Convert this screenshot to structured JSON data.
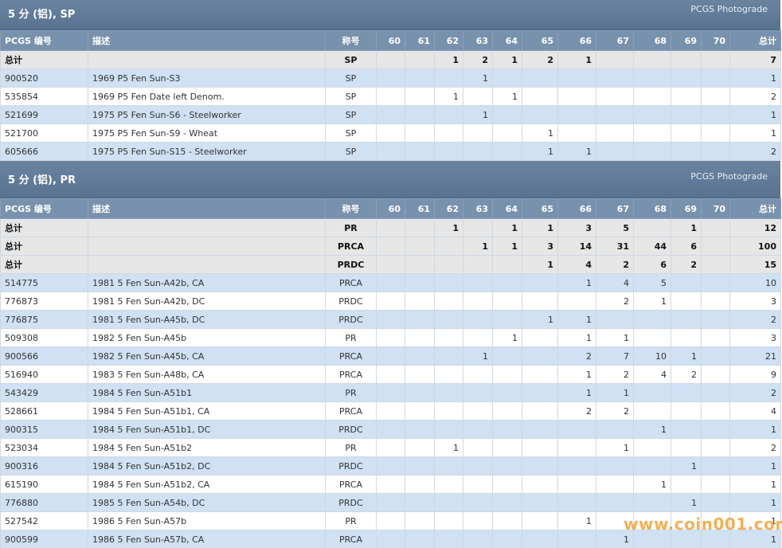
{
  "sections": [
    {
      "title": "5 分 (铝), SP",
      "subtitle": "PCGS Photograde",
      "columns": [
        "PCGS 编号",
        "描述",
        "称号",
        "60",
        "61",
        "62",
        "63",
        "64",
        "65",
        "66",
        "67",
        "68",
        "69",
        "70",
        "总计"
      ],
      "total_rows": [
        [
          "总计",
          null,
          "SP",
          null,
          null,
          1,
          2,
          1,
          2,
          1,
          null,
          null,
          null,
          null,
          7
        ]
      ],
      "rows": [
        [
          "900520",
          "1969 P5 Fen Sun-S3",
          "SP",
          null,
          null,
          null,
          1,
          null,
          null,
          null,
          null,
          null,
          null,
          null,
          1
        ],
        [
          "535854",
          "1969 P5 Fen Date left Denom.",
          "SP",
          null,
          null,
          1,
          null,
          1,
          null,
          null,
          null,
          null,
          null,
          null,
          2
        ],
        [
          "521699",
          "1975 P5 Fen Sun-S6 - Steelworker",
          "SP",
          null,
          null,
          null,
          1,
          null,
          null,
          null,
          null,
          null,
          null,
          null,
          1
        ],
        [
          "521700",
          "1975 P5 Fen Sun-S9 - Wheat",
          "SP",
          null,
          null,
          null,
          null,
          null,
          1,
          null,
          null,
          null,
          null,
          null,
          1
        ],
        [
          "605666",
          "1975 P5 Fen Sun-S15 - Steelworker",
          "SP",
          null,
          null,
          null,
          null,
          null,
          1,
          1,
          null,
          null,
          null,
          null,
          2
        ]
      ]
    },
    {
      "title": "5 分 (铝), PR",
      "subtitle": "PCGS Photograde",
      "columns": [
        "PCGS 编号",
        "描述",
        "称号",
        "60",
        "61",
        "62",
        "63",
        "64",
        "65",
        "66",
        "67",
        "68",
        "69",
        "70",
        "总计"
      ],
      "total_rows": [
        [
          "总计",
          null,
          "PR",
          null,
          null,
          1,
          null,
          1,
          1,
          3,
          5,
          null,
          1,
          null,
          12
        ],
        [
          "总计",
          null,
          "PRCA",
          null,
          null,
          null,
          1,
          1,
          3,
          14,
          31,
          44,
          6,
          null,
          100
        ],
        [
          "总计",
          null,
          "PRDC",
          null,
          null,
          null,
          null,
          null,
          1,
          4,
          2,
          6,
          2,
          null,
          15
        ]
      ],
      "rows": [
        [
          "514775",
          "1981 5 Fen Sun-A42b, CA",
          "PRCA",
          null,
          null,
          null,
          null,
          null,
          null,
          1,
          4,
          5,
          null,
          null,
          10
        ],
        [
          "776873",
          "1981 5 Fen Sun-A42b, DC",
          "PRDC",
          null,
          null,
          null,
          null,
          null,
          null,
          null,
          2,
          1,
          null,
          null,
          3
        ],
        [
          "776875",
          "1981 5 Fen Sun-A45b, DC",
          "PRDC",
          null,
          null,
          null,
          null,
          null,
          1,
          1,
          null,
          null,
          null,
          null,
          2
        ],
        [
          "509308",
          "1982 5 Fen Sun-A45b",
          "PR",
          null,
          null,
          null,
          null,
          1,
          null,
          1,
          1,
          null,
          null,
          null,
          3
        ],
        [
          "900566",
          "1982 5 Fen Sun-A45b, CA",
          "PRCA",
          null,
          null,
          null,
          1,
          null,
          null,
          2,
          7,
          10,
          1,
          null,
          21
        ],
        [
          "516940",
          "1983 5 Fen Sun-A48b, CA",
          "PRCA",
          null,
          null,
          null,
          null,
          null,
          null,
          1,
          2,
          4,
          2,
          null,
          9
        ],
        [
          "543429",
          "1984 5 Fen Sun-A51b1",
          "PR",
          null,
          null,
          null,
          null,
          null,
          null,
          1,
          1,
          null,
          null,
          null,
          2
        ],
        [
          "528661",
          "1984 5 Fen Sun-A51b1, CA",
          "PRCA",
          null,
          null,
          null,
          null,
          null,
          null,
          2,
          2,
          null,
          null,
          null,
          4
        ],
        [
          "900315",
          "1984 5 Fen Sun-A51b1, DC",
          "PRDC",
          null,
          null,
          null,
          null,
          null,
          null,
          null,
          null,
          1,
          null,
          null,
          1
        ],
        [
          "523034",
          "1984 5 Fen Sun-A51b2",
          "PR",
          null,
          null,
          1,
          null,
          null,
          null,
          null,
          1,
          null,
          null,
          null,
          2
        ],
        [
          "900316",
          "1984 5 Fen Sun-A51b2, DC",
          "PRDC",
          null,
          null,
          null,
          null,
          null,
          null,
          null,
          null,
          null,
          1,
          null,
          1
        ],
        [
          "615190",
          "1984 5 Fen Sun-A51b2, CA",
          "PRCA",
          null,
          null,
          null,
          null,
          null,
          null,
          null,
          null,
          1,
          null,
          null,
          1
        ],
        [
          "776880",
          "1985 5 Fen Sun-A54b, DC",
          "PRDC",
          null,
          null,
          null,
          null,
          null,
          null,
          null,
          null,
          null,
          1,
          null,
          1
        ],
        [
          "527542",
          "1986 5 Fen Sun-A57b",
          "PR",
          null,
          null,
          null,
          null,
          null,
          null,
          1,
          null,
          null,
          null,
          null,
          1
        ],
        [
          "900599",
          "1986 5 Fen Sun-A57b, CA",
          "PRCA",
          null,
          null,
          null,
          null,
          null,
          null,
          null,
          1,
          null,
          null,
          null,
          1
        ]
      ]
    }
  ],
  "watermark": "www.coin001.com"
}
